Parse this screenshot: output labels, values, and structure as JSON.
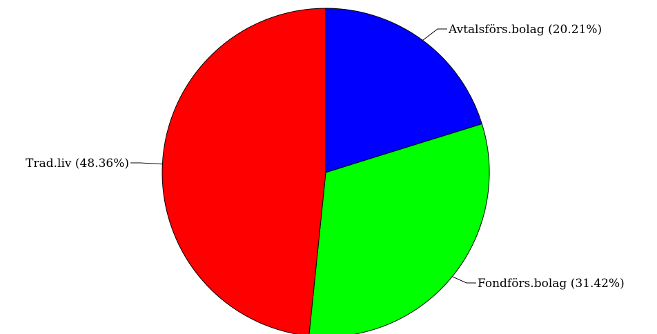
{
  "chart_data": {
    "type": "pie",
    "title": "",
    "slices": [
      {
        "label": "Avtalsförs.bolag (20.21%)",
        "value": 20.21,
        "color": "#0000ff"
      },
      {
        "label": "Fondförs.bolag (31.42%)",
        "value": 31.42,
        "color": "#00ff00"
      },
      {
        "label": "Trad.liv (48.36%)",
        "value": 48.36,
        "color": "#ff0000"
      }
    ],
    "start_angle": "12 o'clock",
    "direction": "clockwise",
    "legend": "none"
  }
}
